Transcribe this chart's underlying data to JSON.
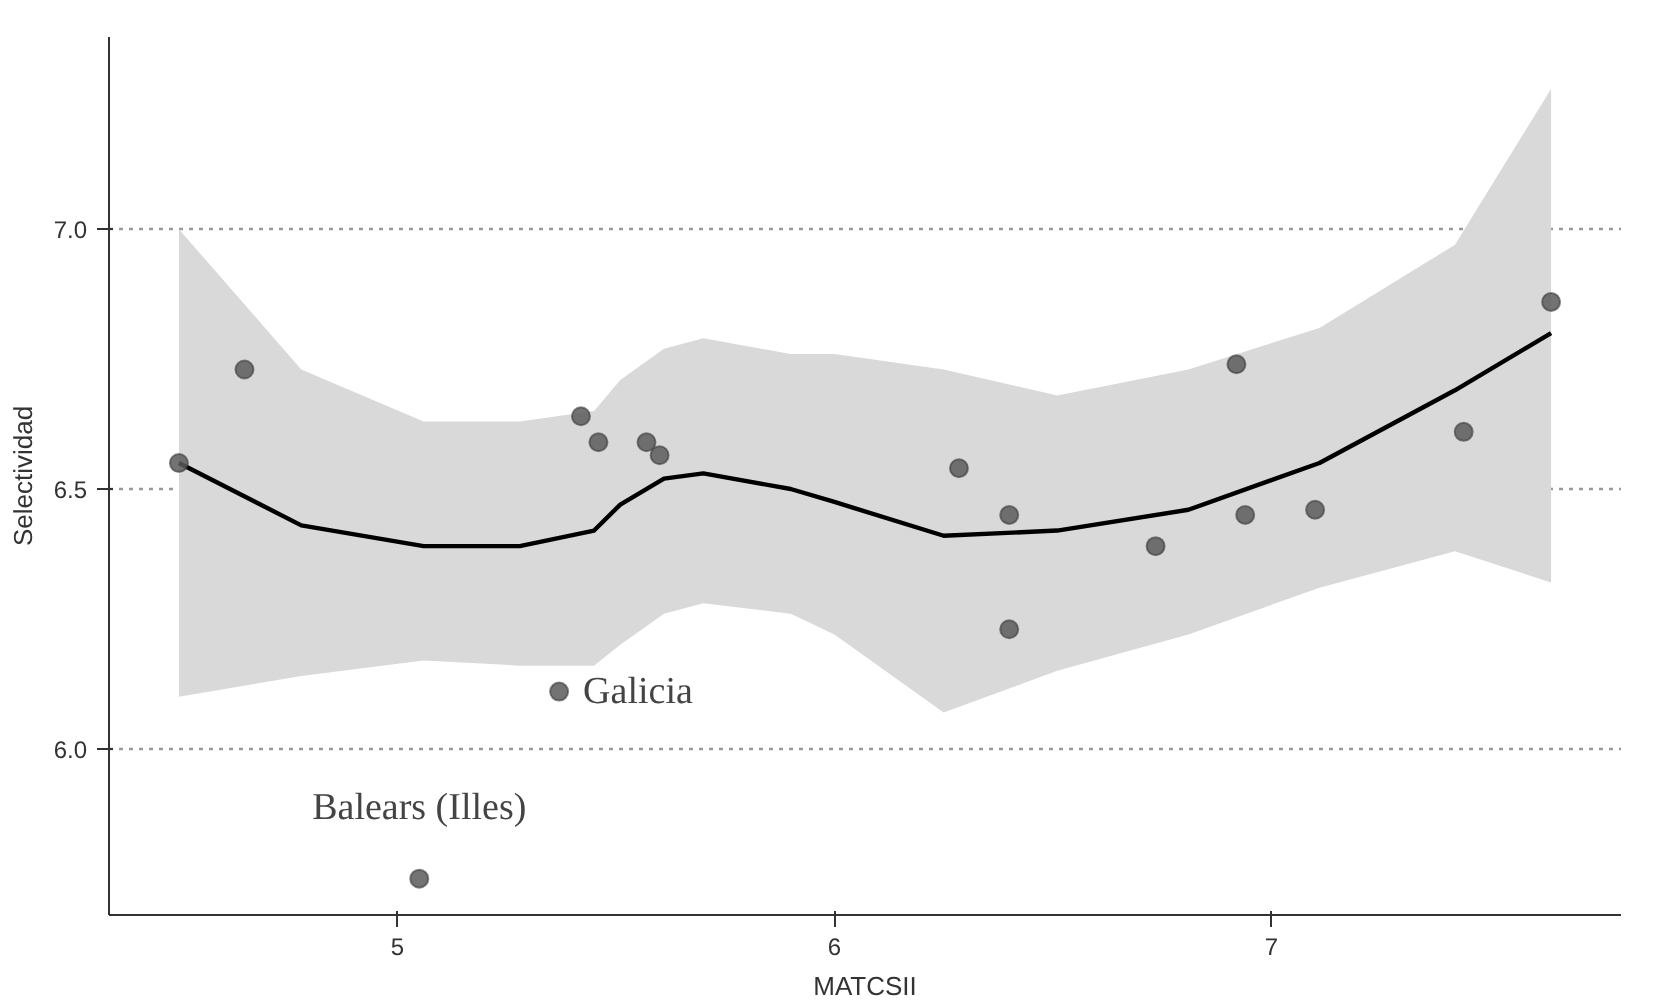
{
  "chart_data": {
    "type": "scatter",
    "xlabel": "MATCSII",
    "ylabel": "Selectividad",
    "xlim": [
      4.34,
      7.8
    ],
    "ylim": [
      5.68,
      7.37
    ],
    "xticks": [
      5,
      6,
      7
    ],
    "yticks": [
      {
        "value": 6,
        "label": "6.0"
      },
      {
        "value": 6.5,
        "label": "6.5"
      },
      {
        "value": 7,
        "label": "7.0"
      }
    ],
    "grid": "y",
    "series": [
      {
        "marker": "circle",
        "color": "#5a5a5a",
        "x": [
          4.5,
          4.65,
          5.42,
          5.46,
          5.57,
          5.6,
          5.37,
          5.05,
          6.285,
          6.4,
          6.4,
          6.735,
          6.92,
          6.94,
          7.1,
          7.44,
          7.64
        ],
        "values": [
          6.55,
          6.73,
          6.64,
          6.59,
          6.59,
          6.565,
          6.11,
          5.75,
          6.54,
          6.45,
          6.23,
          6.39,
          6.74,
          6.45,
          6.46,
          6.61,
          6.86
        ]
      },
      {
        "type": "line",
        "marker": "none",
        "color": "#000000",
        "line_style": "solid",
        "x": [
          4.5,
          4.78,
          5.06,
          5.28,
          5.45,
          5.51,
          5.61,
          5.7,
          5.9,
          6.0,
          6.25,
          6.51,
          6.81,
          7.11,
          7.42,
          7.64
        ],
        "values": [
          6.55,
          6.43,
          6.39,
          6.39,
          6.42,
          6.47,
          6.52,
          6.53,
          6.5,
          6.475,
          6.41,
          6.42,
          6.46,
          6.55,
          6.69,
          6.8
        ],
        "lower": [
          6.1,
          6.14,
          6.17,
          6.16,
          6.16,
          6.2,
          6.26,
          6.28,
          6.26,
          6.22,
          6.07,
          6.15,
          6.22,
          6.31,
          6.38,
          6.32
        ],
        "upper": [
          7.0,
          6.73,
          6.63,
          6.63,
          6.65,
          6.71,
          6.77,
          6.79,
          6.76,
          6.76,
          6.73,
          6.68,
          6.73,
          6.81,
          6.97,
          7.27
        ]
      }
    ],
    "annotations": [
      {
        "text": "Galicia",
        "x": 5.37,
        "y": 6.11
      },
      {
        "text": "Balears (Illes)",
        "x": 5.05,
        "y": 5.75
      }
    ]
  }
}
